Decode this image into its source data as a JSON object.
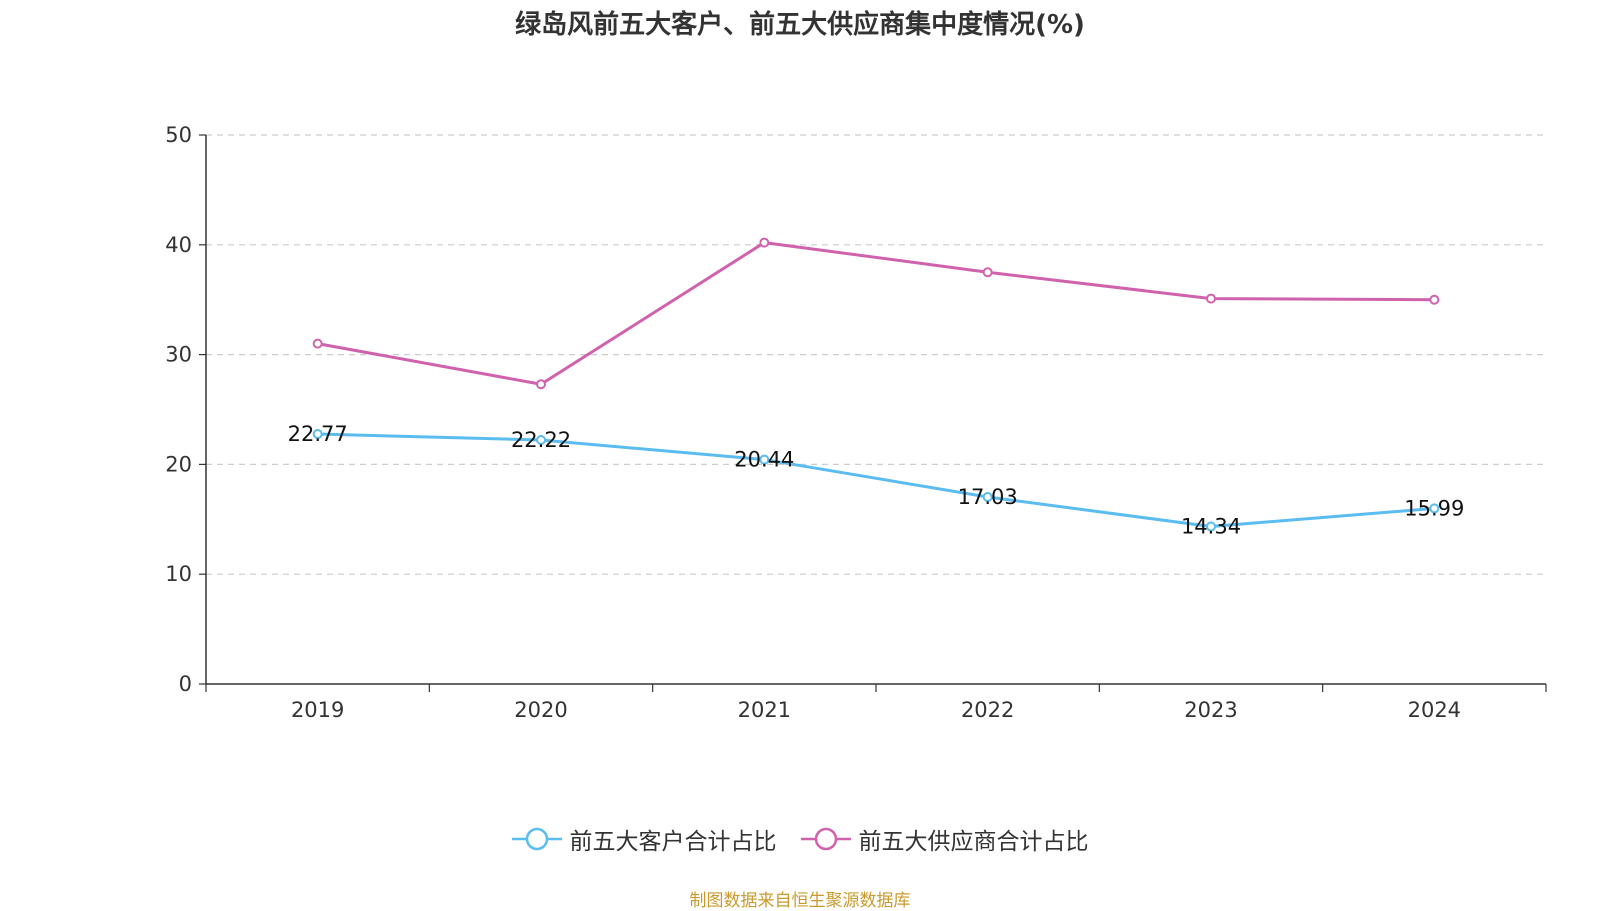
{
  "chart_data": {
    "type": "line",
    "title": "绿岛风前五大客户、前五大供应商集中度情况(%)",
    "categories": [
      "2019",
      "2020",
      "2021",
      "2022",
      "2023",
      "2024"
    ],
    "ylim": [
      0,
      50
    ],
    "yticks": [
      0,
      10,
      20,
      30,
      40,
      50
    ],
    "grid": true,
    "legend_position": "bottom",
    "series": [
      {
        "name": "前五大客户合计占比",
        "values": [
          22.77,
          22.22,
          20.44,
          17.03,
          14.34,
          15.99
        ],
        "labels": [
          "22.77",
          "22.22",
          "20.44",
          "17.03",
          "14.34",
          "15.99"
        ],
        "color": "#5bbcf0"
      },
      {
        "name": "前五大供应商合计占比",
        "values": [
          31.0,
          27.3,
          40.2,
          37.5,
          35.1,
          35.0
        ],
        "color": "#d062ad"
      }
    ]
  },
  "source_note": "制图数据来自恒生聚源数据库",
  "colors": {
    "axis": "#333333",
    "grid": "#cccccc",
    "source": "#c99a2e"
  }
}
